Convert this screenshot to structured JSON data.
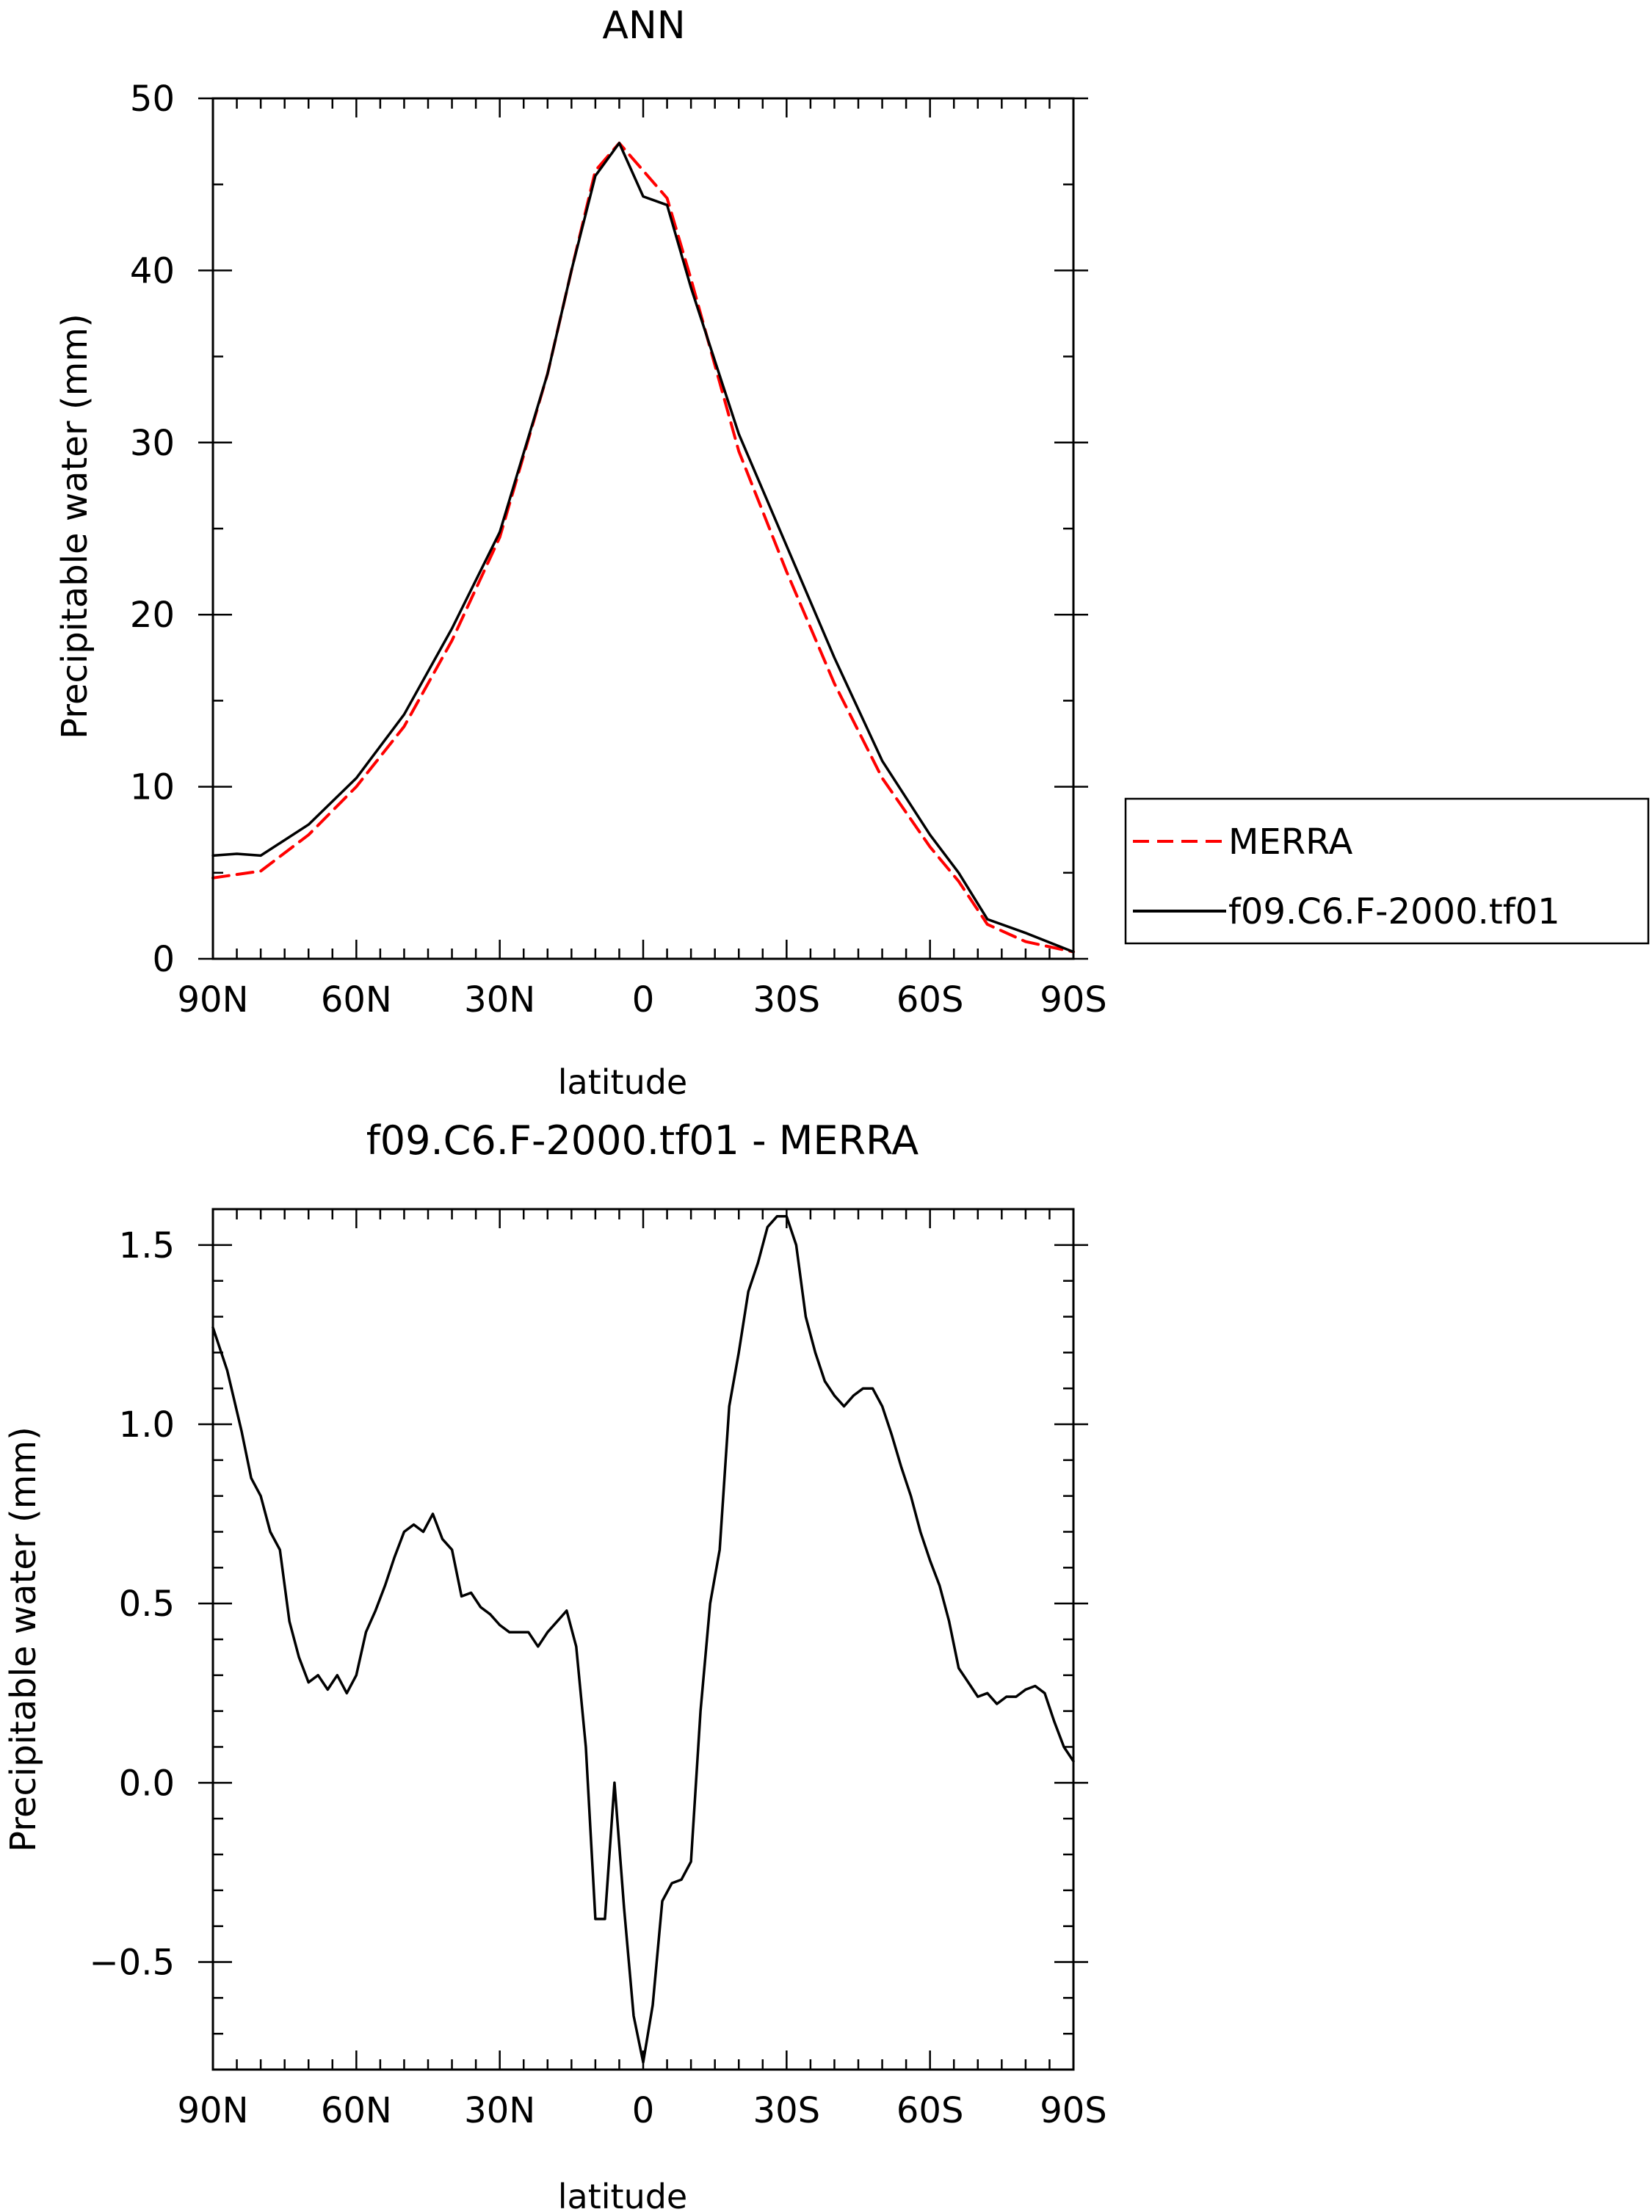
{
  "chart_data": [
    {
      "type": "line",
      "title": "ANN",
      "xlabel": "latitude",
      "ylabel": "Precipitable water (mm)",
      "xlim": [
        90,
        -90
      ],
      "ylim": [
        0,
        50
      ],
      "x_ticks": [
        90,
        60,
        30,
        0,
        -30,
        -60,
        -90
      ],
      "x_tick_labels": [
        "90N",
        "60N",
        "30N",
        "0",
        "30S",
        "60S",
        "90S"
      ],
      "y_ticks": [
        0,
        10,
        20,
        30,
        40,
        50
      ],
      "y_tick_labels": [
        "0",
        "10",
        "20",
        "30",
        "40",
        "50"
      ],
      "legend": {
        "placement": "right-outside"
      },
      "series": [
        {
          "name": "MERRA",
          "color": "#ff0000",
          "dash": "dashed",
          "x": [
            90,
            80,
            70,
            60,
            50,
            40,
            30,
            20,
            15,
            10,
            5,
            0,
            -5,
            -10,
            -20,
            -30,
            -40,
            -50,
            -60,
            -66,
            -72,
            -80,
            -90
          ],
          "y": [
            4.7,
            5.1,
            7.2,
            10.0,
            13.5,
            18.5,
            24.5,
            34.0,
            40.0,
            45.8,
            47.4,
            45.8,
            44.2,
            39.5,
            29.5,
            22.5,
            16.0,
            10.5,
            6.5,
            4.5,
            2.0,
            1.0,
            0.4
          ]
        },
        {
          "name": "f09.C6.F-2000.tf01",
          "color": "#000000",
          "dash": "solid",
          "x": [
            90,
            85,
            80,
            70,
            60,
            50,
            40,
            30,
            20,
            15,
            10,
            5,
            0,
            -5,
            -10,
            -20,
            -30,
            -40,
            -50,
            -60,
            -66,
            -72,
            -80,
            -90
          ],
          "y": [
            6.0,
            6.1,
            6.0,
            7.8,
            10.5,
            14.2,
            19.2,
            24.8,
            34.0,
            40.0,
            45.5,
            47.4,
            44.3,
            43.8,
            39.0,
            30.5,
            24.0,
            17.5,
            11.5,
            7.2,
            5.0,
            2.3,
            1.5,
            0.4
          ]
        }
      ]
    },
    {
      "type": "line",
      "title": "f09.C6.F-2000.tf01 - MERRA",
      "xlabel": "latitude",
      "ylabel": "Precipitable water (mm)",
      "xlim": [
        90,
        -90
      ],
      "ylim": [
        -0.8,
        1.6
      ],
      "x_ticks": [
        90,
        60,
        30,
        0,
        -30,
        -60,
        -90
      ],
      "x_tick_labels": [
        "90N",
        "60N",
        "30N",
        "0",
        "30S",
        "60S",
        "90S"
      ],
      "y_ticks": [
        -0.5,
        0.0,
        0.5,
        1.0,
        1.5
      ],
      "y_tick_labels": [
        "−0.5",
        "0.0",
        "0.5",
        "1.0",
        "1.5"
      ],
      "series": [
        {
          "color": "#000000",
          "dash": "solid",
          "x": [
            90,
            87,
            84,
            82,
            80,
            78,
            76,
            74,
            72,
            70,
            68,
            66,
            64,
            62,
            60,
            58,
            56,
            54,
            52,
            50,
            48,
            46,
            44,
            42,
            40,
            38,
            36,
            34,
            32,
            30,
            28,
            26,
            24,
            22,
            20,
            18,
            16,
            14,
            12,
            10,
            8,
            6,
            4,
            2,
            0,
            -2,
            -4,
            -6,
            -8,
            -10,
            -12,
            -14,
            -16,
            -18,
            -20,
            -22,
            -24,
            -26,
            -28,
            -30,
            -32,
            -34,
            -36,
            -38,
            -40,
            -42,
            -44,
            -46,
            -48,
            -50,
            -52,
            -54,
            -56,
            -58,
            -60,
            -62,
            -64,
            -66,
            -68,
            -70,
            -72,
            -74,
            -76,
            -78,
            -80,
            -82,
            -84,
            -86,
            -88,
            -90
          ],
          "y": [
            1.27,
            1.15,
            0.98,
            0.85,
            0.8,
            0.7,
            0.65,
            0.45,
            0.35,
            0.28,
            0.3,
            0.26,
            0.3,
            0.25,
            0.3,
            0.42,
            0.48,
            0.55,
            0.63,
            0.7,
            0.72,
            0.7,
            0.75,
            0.68,
            0.65,
            0.52,
            0.53,
            0.49,
            0.47,
            0.44,
            0.42,
            0.42,
            0.42,
            0.38,
            0.42,
            0.45,
            0.48,
            0.38,
            0.1,
            -0.38,
            -0.38,
            0.0,
            -0.35,
            -0.65,
            -0.78,
            -0.62,
            -0.33,
            -0.28,
            -0.27,
            -0.22,
            0.2,
            0.5,
            0.65,
            1.05,
            1.2,
            1.37,
            1.45,
            1.55,
            1.58,
            1.58,
            1.5,
            1.3,
            1.2,
            1.12,
            1.08,
            1.05,
            1.08,
            1.1,
            1.1,
            1.05,
            0.97,
            0.88,
            0.8,
            0.7,
            0.62,
            0.55,
            0.45,
            0.32,
            0.28,
            0.24,
            0.25,
            0.22,
            0.24,
            0.24,
            0.26,
            0.27,
            0.25,
            0.17,
            0.1,
            0.06
          ]
        }
      ]
    }
  ]
}
